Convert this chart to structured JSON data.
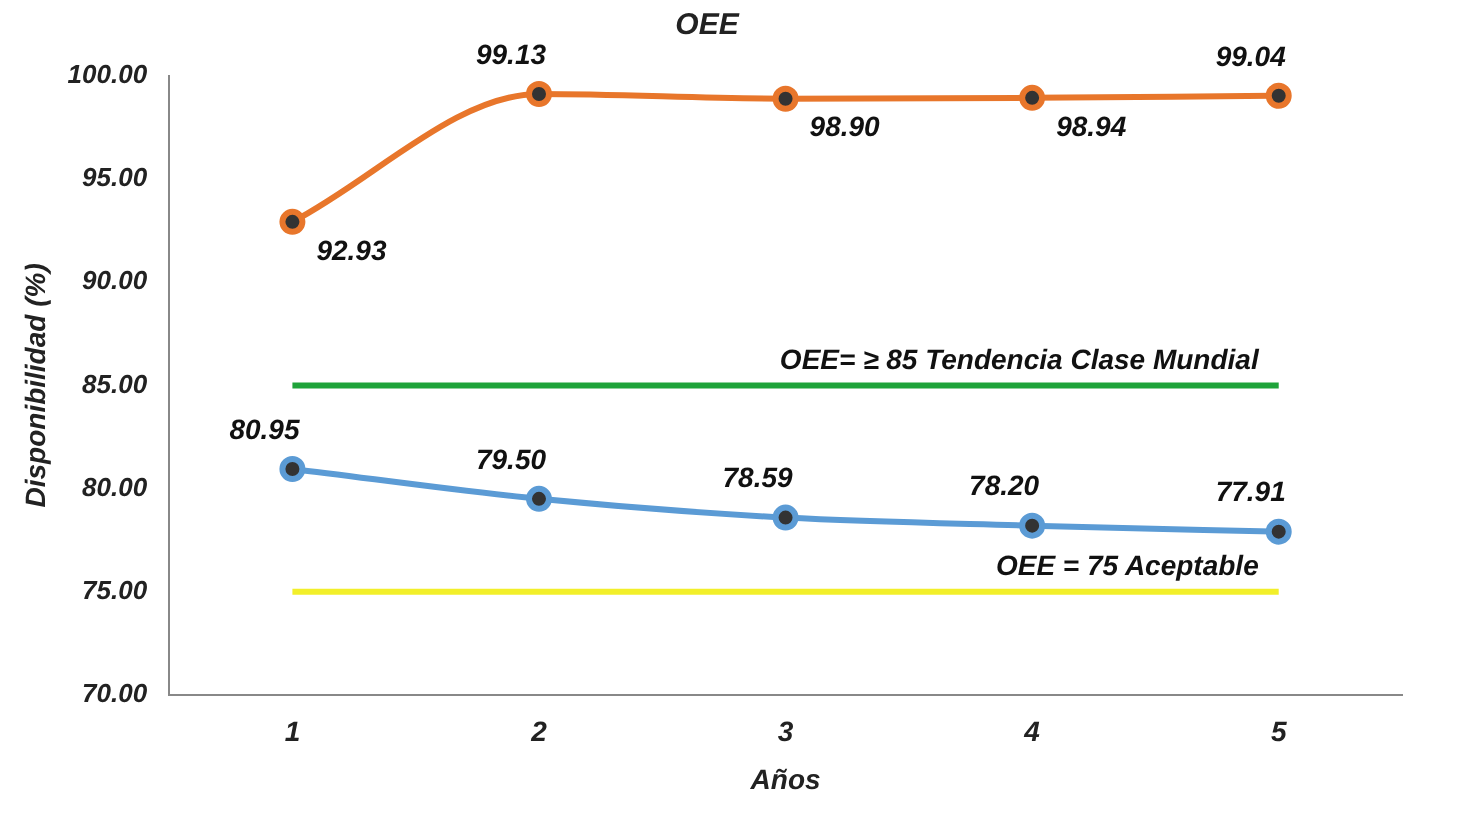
{
  "chart_data": {
    "type": "line",
    "title": "OEE",
    "xlabel": "Años",
    "ylabel": "Disponibilidad (%)",
    "categories": [
      "1",
      "2",
      "3",
      "4",
      "5"
    ],
    "series": [
      {
        "color": "#e8762b",
        "values": [
          92.93,
          99.13,
          98.9,
          98.94,
          99.04
        ],
        "value_labels": [
          "92.93",
          "99.13",
          "98.90",
          "98.94",
          "99.04"
        ]
      },
      {
        "color": "#5b9bd5",
        "values": [
          80.95,
          79.5,
          78.59,
          78.2,
          77.91
        ],
        "value_labels": [
          "80.95",
          "79.50",
          "78.59",
          "78.20",
          "77.91"
        ]
      }
    ],
    "ylim": [
      70,
      100
    ],
    "yticks": [
      {
        "value": 70,
        "label": "70.00"
      },
      {
        "value": 75,
        "label": "75.00"
      },
      {
        "value": 80,
        "label": "80.00"
      },
      {
        "value": 85,
        "label": "85.00"
      },
      {
        "value": 90,
        "label": "90.00"
      },
      {
        "value": 95,
        "label": "95.00"
      },
      {
        "value": 100,
        "label": "100.00"
      }
    ],
    "ref_lines": [
      {
        "axis": "y",
        "value": 85,
        "label": "OEE= ≥ 85 Tendencia Clase Mundial",
        "color": "#1fa33a"
      },
      {
        "axis": "y",
        "value": 75,
        "label": "OEE = 75 Aceptable",
        "color": "#f2ef2a"
      }
    ],
    "marker": "circle",
    "grid": false,
    "legend": false
  }
}
